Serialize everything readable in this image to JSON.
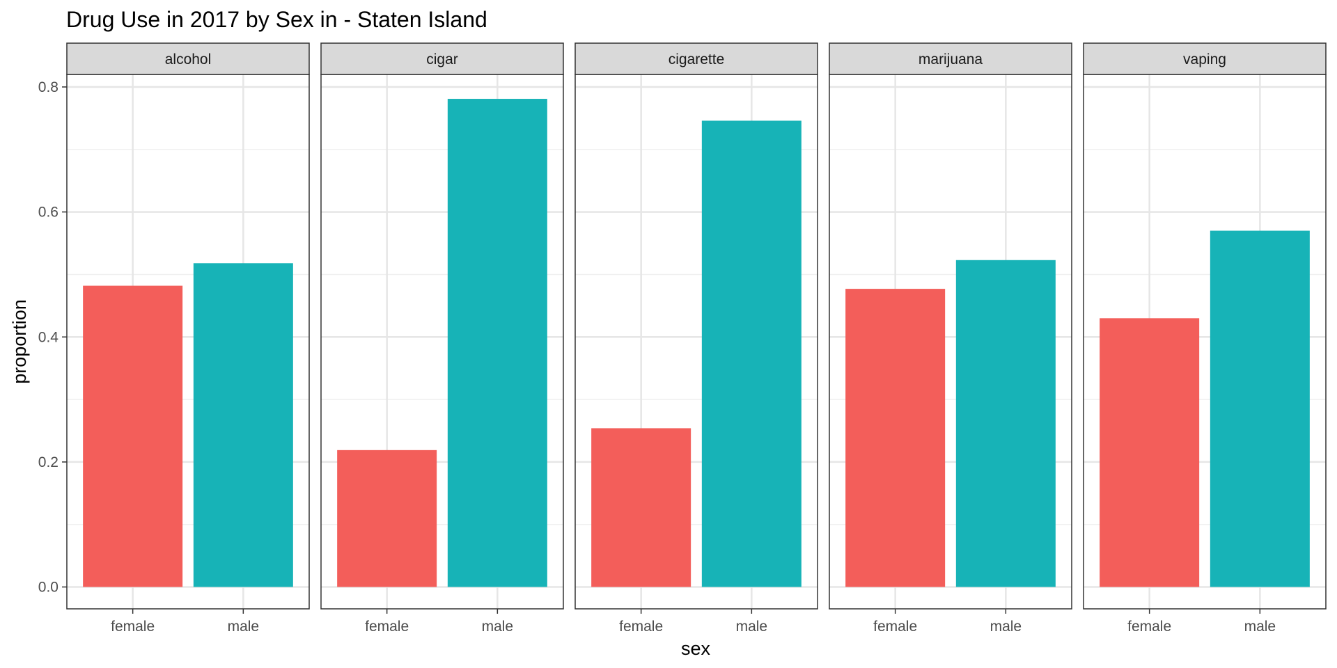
{
  "chart_data": {
    "type": "bar",
    "title": "Drug Use in 2017 by Sex in  - Staten Island",
    "xlabel": "sex",
    "ylabel": "proportion",
    "ylim": [
      -0.035,
      0.82
    ],
    "yticks": [
      "0.0",
      "0.2",
      "0.4",
      "0.6",
      "0.8"
    ],
    "grid": true,
    "legend": "none",
    "categories": [
      "female",
      "male"
    ],
    "colors": {
      "female": "#F35E5A",
      "male": "#17B3B7"
    },
    "facets": [
      {
        "name": "alcohol",
        "values": [
          0.482,
          0.518
        ]
      },
      {
        "name": "cigar",
        "values": [
          0.219,
          0.781
        ]
      },
      {
        "name": "cigarette",
        "values": [
          0.254,
          0.746
        ]
      },
      {
        "name": "marijuana",
        "values": [
          0.477,
          0.523
        ]
      },
      {
        "name": "vaping",
        "values": [
          0.43,
          0.57
        ]
      }
    ]
  }
}
